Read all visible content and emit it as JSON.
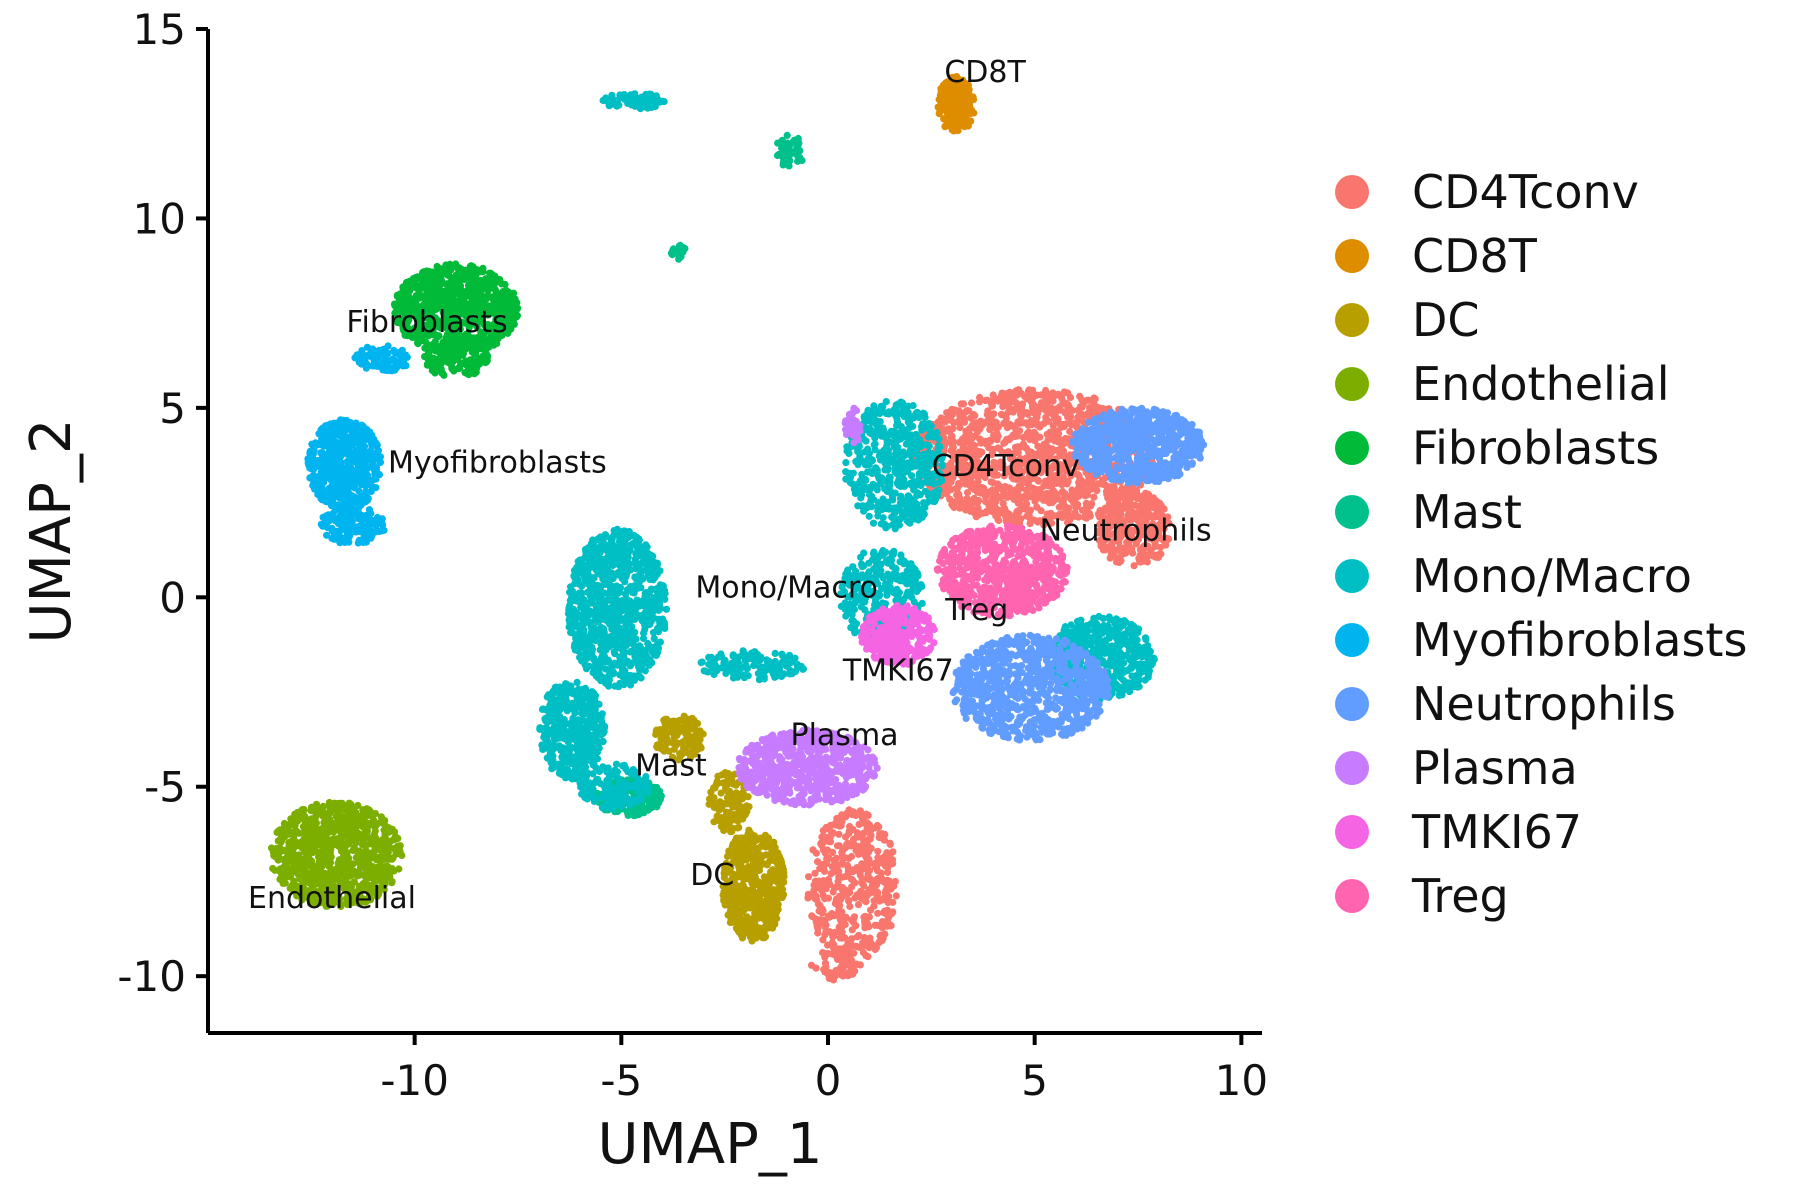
{
  "chart_data": {
    "type": "scatter",
    "title": "",
    "xlabel": "UMAP_1",
    "ylabel": "UMAP_2",
    "xlim": [
      -15,
      10.5
    ],
    "ylim": [
      -11.5,
      15
    ],
    "xticks": [
      -10,
      -5,
      0,
      5,
      10
    ],
    "xtick_labels": [
      "-10",
      "-5",
      "0",
      "5",
      "10"
    ],
    "yticks": [
      -10,
      -5,
      0,
      5,
      10,
      15
    ],
    "ytick_labels": [
      "-10",
      "-5",
      "0",
      "5",
      "10",
      "15"
    ],
    "grid": false,
    "legend_position": "right",
    "series": [
      {
        "name": "CD4Tconv",
        "color": "#F8766D",
        "label": {
          "text": "CD4Tconv",
          "x": 4.3,
          "y": 3.2
        },
        "regions": [
          {
            "cx": 5.0,
            "cy": 3.7,
            "rx": 2.9,
            "ry": 1.8,
            "n": 1300
          },
          {
            "cx": 7.4,
            "cy": 1.8,
            "rx": 0.9,
            "ry": 1.0,
            "n": 300
          },
          {
            "cx": 0.6,
            "cy": -7.6,
            "rx": 1.1,
            "ry": 2.0,
            "n": 450
          },
          {
            "cx": 0.2,
            "cy": -9.7,
            "rx": 0.6,
            "ry": 0.4,
            "n": 60
          }
        ]
      },
      {
        "name": "CD8T",
        "color": "#DE8C00",
        "label": {
          "text": "CD8T",
          "x": 3.8,
          "y": 13.6
        },
        "regions": [
          {
            "cx": 3.1,
            "cy": 13.0,
            "rx": 0.45,
            "ry": 0.75,
            "n": 200
          }
        ]
      },
      {
        "name": "DC",
        "color": "#B79F00",
        "label": {
          "text": "DC",
          "x": -2.8,
          "y": -7.6
        },
        "regions": [
          {
            "cx": -1.8,
            "cy": -7.6,
            "rx": 0.75,
            "ry": 1.5,
            "n": 450
          },
          {
            "cx": -3.6,
            "cy": -3.7,
            "rx": 0.6,
            "ry": 0.6,
            "n": 120
          },
          {
            "cx": -2.4,
            "cy": -5.4,
            "rx": 0.5,
            "ry": 0.8,
            "n": 120
          }
        ]
      },
      {
        "name": "Endothelial",
        "color": "#7CAE00",
        "label": {
          "text": "Endothelial",
          "x": -12.0,
          "y": -8.2
        },
        "regions": [
          {
            "cx": -11.9,
            "cy": -6.8,
            "rx": 1.6,
            "ry": 1.4,
            "n": 850
          }
        ]
      },
      {
        "name": "Fibroblasts",
        "color": "#00BA38",
        "label": {
          "text": "Fibroblasts",
          "x": -9.7,
          "y": 7.0
        },
        "regions": [
          {
            "cx": -9.0,
            "cy": 7.6,
            "rx": 1.5,
            "ry": 1.2,
            "n": 800
          },
          {
            "cx": -9.0,
            "cy": 6.3,
            "rx": 0.8,
            "ry": 0.5,
            "n": 120
          }
        ]
      },
      {
        "name": "Mast",
        "color": "#00C08B",
        "label": {
          "text": "Mast",
          "x": -3.8,
          "y": -4.7
        },
        "regions": [
          {
            "cx": -4.8,
            "cy": -5.3,
            "rx": 0.8,
            "ry": 0.5,
            "n": 220
          },
          {
            "cx": -3.6,
            "cy": 9.1,
            "rx": 0.2,
            "ry": 0.2,
            "n": 25
          },
          {
            "cx": -0.9,
            "cy": 11.8,
            "rx": 0.4,
            "ry": 0.45,
            "n": 40
          }
        ]
      },
      {
        "name": "Mono/Macro",
        "color": "#00BFC4",
        "label": {
          "text": "Mono/Macro",
          "x": -1.0,
          "y": 0.0
        },
        "regions": [
          {
            "cx": -5.1,
            "cy": -0.3,
            "rx": 1.2,
            "ry": 2.1,
            "n": 900
          },
          {
            "cx": -6.2,
            "cy": -3.5,
            "rx": 0.8,
            "ry": 1.3,
            "n": 400
          },
          {
            "cx": -5.2,
            "cy": -5.0,
            "rx": 0.9,
            "ry": 0.6,
            "n": 140
          },
          {
            "cx": 1.6,
            "cy": 3.5,
            "rx": 1.2,
            "ry": 1.7,
            "n": 500
          },
          {
            "cx": 1.3,
            "cy": 0.0,
            "rx": 1.0,
            "ry": 1.3,
            "n": 300
          },
          {
            "cx": 6.6,
            "cy": -1.6,
            "rx": 1.3,
            "ry": 1.1,
            "n": 500
          },
          {
            "cx": -1.8,
            "cy": -1.8,
            "rx": 1.3,
            "ry": 0.4,
            "n": 140
          },
          {
            "cx": -4.7,
            "cy": 13.1,
            "rx": 0.75,
            "ry": 0.22,
            "n": 80
          }
        ]
      },
      {
        "name": "Myofibroblasts",
        "color": "#00B4F0",
        "label": {
          "text": "Myofibroblasts",
          "x": -8.0,
          "y": 3.3
        },
        "regions": [
          {
            "cx": -11.7,
            "cy": 3.5,
            "rx": 0.9,
            "ry": 1.2,
            "n": 500
          },
          {
            "cx": -11.5,
            "cy": 1.9,
            "rx": 0.8,
            "ry": 0.5,
            "n": 160
          },
          {
            "cx": -10.8,
            "cy": 6.3,
            "rx": 0.7,
            "ry": 0.35,
            "n": 90
          }
        ]
      },
      {
        "name": "Neutrophils",
        "color": "#619CFF",
        "label": {
          "text": "Neutrophils",
          "x": 7.2,
          "y": 1.5
        },
        "regions": [
          {
            "cx": 4.9,
            "cy": -2.4,
            "rx": 1.9,
            "ry": 1.4,
            "n": 800
          },
          {
            "cx": 7.5,
            "cy": 4.0,
            "rx": 1.6,
            "ry": 1.0,
            "n": 650
          }
        ]
      },
      {
        "name": "Plasma",
        "color": "#C77CFF",
        "label": {
          "text": "Plasma",
          "x": 0.4,
          "y": -3.9
        },
        "regions": [
          {
            "cx": -0.5,
            "cy": -4.5,
            "rx": 1.7,
            "ry": 1.0,
            "n": 650
          },
          {
            "cx": 0.6,
            "cy": 4.5,
            "rx": 0.2,
            "ry": 0.5,
            "n": 30
          }
        ]
      },
      {
        "name": "TMKI67",
        "color": "#F564E3",
        "label": {
          "text": "TMKI67",
          "x": 1.7,
          "y": -2.2
        },
        "regions": [
          {
            "cx": 1.7,
            "cy": -1.0,
            "rx": 0.9,
            "ry": 0.8,
            "n": 300
          }
        ]
      },
      {
        "name": "Treg",
        "color": "#FF64B0",
        "label": {
          "text": "Treg",
          "x": 3.6,
          "y": -0.6
        },
        "regions": [
          {
            "cx": 4.2,
            "cy": 0.7,
            "rx": 1.6,
            "ry": 1.2,
            "n": 700
          }
        ]
      }
    ]
  }
}
